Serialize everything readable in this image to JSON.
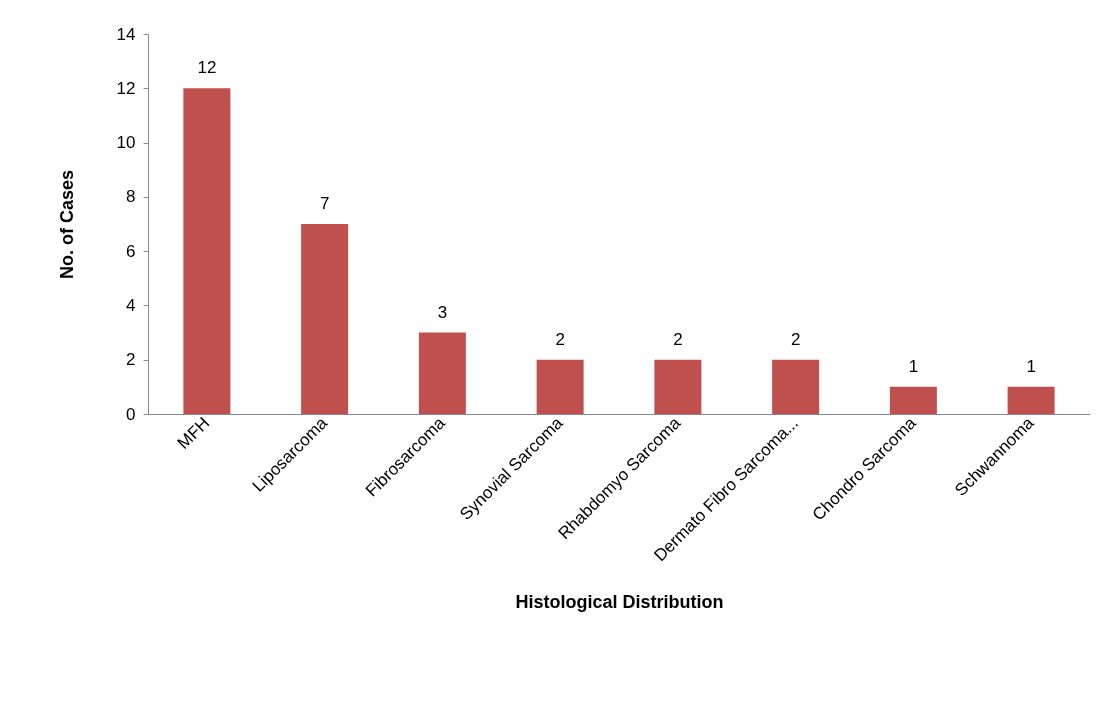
{
  "chart_data": {
    "type": "bar",
    "xlabel": "Histological Distribution",
    "ylabel": "No. of Cases",
    "categories": [
      "MFH",
      "Liposarcoma",
      "Fibrosarcoma",
      "Synovial Sarcoma",
      "Rhabdomyo Sarcoma",
      "Dermato Fibro Sarcoma...",
      "Chondro Sarcoma",
      "Schwannoma"
    ],
    "values": [
      12,
      7,
      3,
      2,
      2,
      2,
      1,
      1
    ],
    "color": "#c0504d",
    "ylim": [
      0,
      14
    ],
    "yticks": [
      0,
      2,
      4,
      6,
      8,
      10,
      12,
      14
    ],
    "grid": false,
    "data_labels": true
  }
}
